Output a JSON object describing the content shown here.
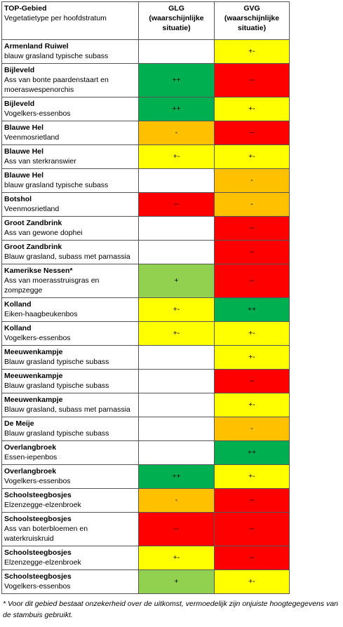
{
  "header": {
    "area": "TOP-Gebied",
    "type": "Vegetatietype per hoofdstratum",
    "glg": "GLG (waarschijnlijke situatie)",
    "gvg": "GVG (waarschijnlijke situatie)"
  },
  "rows": [
    {
      "area": "Armenland Ruiwel",
      "type": "blauw grasland typische subass",
      "glg": {
        "text": null,
        "color": "#ffffff"
      },
      "gvg": {
        "text": "+-",
        "color": "#ffff00"
      }
    },
    {
      "area": "Bijleveld",
      "type": "Ass van bonte paardenstaart en moeraswespenorchis",
      "glg": {
        "text": "++",
        "color": "#00b050"
      },
      "gvg": {
        "text": "--",
        "color": "#ff0000"
      }
    },
    {
      "area": "Bijleveld",
      "type": "Vogelkers-essenbos",
      "glg": {
        "text": "++",
        "color": "#00b050"
      },
      "gvg": {
        "text": "+-",
        "color": "#ffff00"
      }
    },
    {
      "area": "Blauwe Hel",
      "type": "Veenmosrietland",
      "glg": {
        "text": "-",
        "color": "#ffc000"
      },
      "gvg": {
        "text": "--",
        "color": "#ff0000"
      }
    },
    {
      "area": "Blauwe Hel",
      "type": "Ass van sterkranswier",
      "glg": {
        "text": "+-",
        "color": "#ffff00"
      },
      "gvg": {
        "text": "+-",
        "color": "#ffff00"
      }
    },
    {
      "area": "Blauwe Hel",
      "type": "blauw grasland typische subass",
      "glg": {
        "text": null,
        "color": "#ffffff"
      },
      "gvg": {
        "text": "-",
        "color": "#ffc000"
      }
    },
    {
      "area": "Botshol",
      "type": "Veenmosrietland",
      "glg": {
        "text": "--",
        "color": "#ff0000"
      },
      "gvg": {
        "text": "-",
        "color": "#ffc000"
      }
    },
    {
      "area": "Groot Zandbrink",
      "type": "Ass van gewone dophei",
      "glg": {
        "text": null,
        "color": "#ffffff"
      },
      "gvg": {
        "text": "--",
        "color": "#ff0000"
      }
    },
    {
      "area": "Groot Zandbrink",
      "type": "Blauw grasland, subass met parnassia",
      "glg": {
        "text": null,
        "color": "#ffffff"
      },
      "gvg": {
        "text": "--",
        "color": "#ff0000"
      }
    },
    {
      "area": "Kamerikse Nessen*",
      "type": "Ass van moerasstruisgras en zompzegge",
      "glg": {
        "text": "+",
        "color": "#92d050"
      },
      "gvg": {
        "text": "--",
        "color": "#ff0000"
      }
    },
    {
      "area": "Kolland",
      "type": "Eiken-haagbeukenbos",
      "glg": {
        "text": "+-",
        "color": "#ffff00"
      },
      "gvg": {
        "text": "++",
        "color": "#00b050"
      }
    },
    {
      "area": "Kolland",
      "type": "Vogelkers-essenbos",
      "glg": {
        "text": "+-",
        "color": "#ffff00"
      },
      "gvg": {
        "text": "+-",
        "color": "#ffff00"
      }
    },
    {
      "area": "Meeuwenkampje",
      "type": "Blauw grasland typische subass",
      "glg": {
        "text": null,
        "color": "#ffffff"
      },
      "gvg": {
        "text": "+-",
        "color": "#ffff00"
      }
    },
    {
      "area": "Meeuwenkampje",
      "type": "Blauw grasland typische subass",
      "glg": {
        "text": null,
        "color": "#ffffff"
      },
      "gvg": {
        "text": "--",
        "color": "#ff0000"
      }
    },
    {
      "area": "Meeuwenkampje",
      "type": "Blauw grasland, subass met parnassia",
      "glg": {
        "text": null,
        "color": "#ffffff"
      },
      "gvg": {
        "text": "+-",
        "color": "#ffff00"
      }
    },
    {
      "area": "De Meije",
      "type": "Blauw grasland typische subass",
      "glg": {
        "text": null,
        "color": "#ffffff"
      },
      "gvg": {
        "text": "-",
        "color": "#ffc000"
      }
    },
    {
      "area": "Overlangbroek",
      "type": "Essen-iepenbos",
      "glg": {
        "text": null,
        "color": "#ffffff"
      },
      "gvg": {
        "text": "++",
        "color": "#00b050"
      }
    },
    {
      "area": "Overlangbroek",
      "type": "Vogelkers-essenbos",
      "glg": {
        "text": "++",
        "color": "#00b050"
      },
      "gvg": {
        "text": "+-",
        "color": "#ffff00"
      }
    },
    {
      "area": "Schoolsteegbosjes",
      "type": "Elzenzegge-elzenbroek",
      "glg": {
        "text": "-",
        "color": "#ffc000"
      },
      "gvg": {
        "text": "--",
        "color": "#ff0000"
      }
    },
    {
      "area": "Schoolsteegbosjes",
      "type": "Ass van boterbloemen en waterkruiskruid",
      "glg": {
        "text": "--",
        "color": "#ff0000"
      },
      "gvg": {
        "text": "--",
        "color": "#ff0000"
      }
    },
    {
      "area": "Schoolsteegbosjes",
      "type": "Elzenzegge-elzenbroek",
      "glg": {
        "text": "+-",
        "color": "#ffff00"
      },
      "gvg": {
        "text": "--",
        "color": "#ff0000"
      }
    },
    {
      "area": "Schoolsteegbosjes",
      "type": "Vogelkers-essenbos",
      "glg": {
        "text": "+",
        "color": "#92d050"
      },
      "gvg": {
        "text": "+-",
        "color": "#ffff00"
      }
    }
  ],
  "footnote": "* Voor dit gebied bestaat onzekerheid over de uitkomst, vermoedelijk zijn onjuiste hoogtegegevens van de stambuis gebruikt."
}
